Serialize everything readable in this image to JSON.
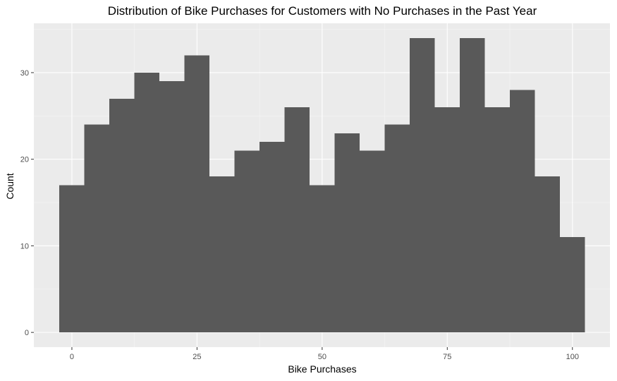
{
  "chart_data": {
    "type": "bar",
    "subtype": "histogram",
    "title": "Distribution of Bike Purchases for Customers with No Purchases in the Past Year",
    "xlabel": "Bike Purchases",
    "ylabel": "Count",
    "bin_width": 5,
    "bins": [
      {
        "x0": -2.5,
        "x1": 2.5,
        "count": 17
      },
      {
        "x0": 2.5,
        "x1": 7.5,
        "count": 24
      },
      {
        "x0": 7.5,
        "x1": 12.5,
        "count": 27
      },
      {
        "x0": 12.5,
        "x1": 17.5,
        "count": 30
      },
      {
        "x0": 17.5,
        "x1": 22.5,
        "count": 29
      },
      {
        "x0": 22.5,
        "x1": 27.5,
        "count": 32
      },
      {
        "x0": 27.5,
        "x1": 32.5,
        "count": 18
      },
      {
        "x0": 32.5,
        "x1": 37.5,
        "count": 21
      },
      {
        "x0": 37.5,
        "x1": 42.5,
        "count": 22
      },
      {
        "x0": 42.5,
        "x1": 47.5,
        "count": 26
      },
      {
        "x0": 47.5,
        "x1": 52.5,
        "count": 17
      },
      {
        "x0": 52.5,
        "x1": 57.5,
        "count": 23
      },
      {
        "x0": 57.5,
        "x1": 62.5,
        "count": 21
      },
      {
        "x0": 62.5,
        "x1": 67.5,
        "count": 24
      },
      {
        "x0": 67.5,
        "x1": 72.5,
        "count": 34
      },
      {
        "x0": 72.5,
        "x1": 77.5,
        "count": 26
      },
      {
        "x0": 77.5,
        "x1": 82.5,
        "count": 34
      },
      {
        "x0": 82.5,
        "x1": 87.5,
        "count": 26
      },
      {
        "x0": 87.5,
        "x1": 92.5,
        "count": 28
      },
      {
        "x0": 92.5,
        "x1": 97.5,
        "count": 18
      },
      {
        "x0": 97.5,
        "x1": 102.5,
        "count": 11
      }
    ],
    "xlim": [
      -7.6,
      107.5
    ],
    "ylim": [
      -1.7,
      35.7
    ],
    "x_ticks": [
      0,
      25,
      50,
      75,
      100
    ],
    "x_tick_labels": [
      "0",
      "25",
      "50",
      "75",
      "100"
    ],
    "y_ticks": [
      0,
      10,
      20,
      30
    ],
    "y_tick_labels": [
      "0",
      "10",
      "20",
      "30"
    ],
    "grid": true,
    "legend": "none",
    "colors": {
      "bar": "#595959",
      "panel": "#ebebeb",
      "grid_major": "#ffffff",
      "grid_minor": "#f5f5f5",
      "tick_text": "#4d4d4d"
    }
  }
}
